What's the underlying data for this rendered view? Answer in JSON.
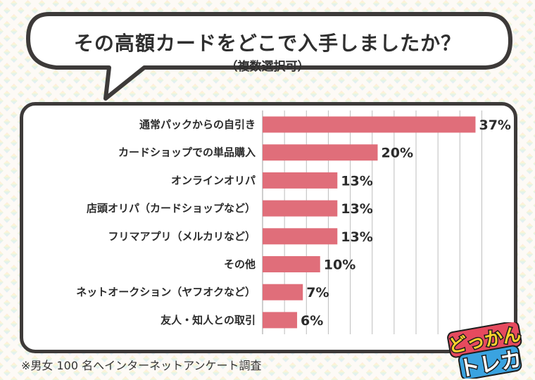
{
  "title": "その高額カードをどこで入手しましたか？",
  "subtitle": "（複数選択可）",
  "footnote": "※男女 100 名へインターネットアンケート調査",
  "logo": {
    "top_text": "どっかん",
    "bottom_text": "トレカ"
  },
  "colors": {
    "bar": "#e06e7a",
    "grid": "#bdbdbd",
    "panel_border": "#3d3a39"
  },
  "chart_data": {
    "type": "bar",
    "orientation": "horizontal",
    "categories": [
      "通常パックからの自引き",
      "カードショップでの単品購入",
      "オンラインオリパ",
      "店頭オリパ（カードショップなど）",
      "フリマアプリ（メルカリなど）",
      "その他",
      "ネットオークション（ヤフオクなど）",
      "友人・知人との取引"
    ],
    "values": [
      37,
      20,
      13,
      13,
      13,
      10,
      7,
      6
    ],
    "value_labels": [
      "37%",
      "20%",
      "13%",
      "13%",
      "13%",
      "10%",
      "7%",
      "6%"
    ],
    "unit": "%",
    "xlim": [
      0,
      40
    ],
    "grid": true
  }
}
